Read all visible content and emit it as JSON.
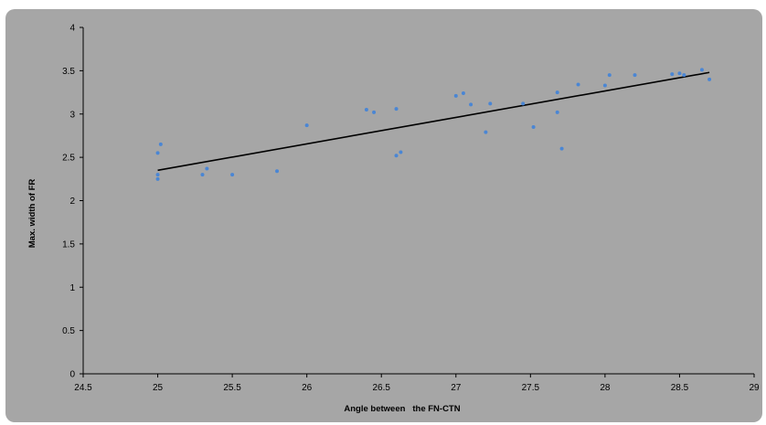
{
  "chart_data": {
    "type": "scatter",
    "title": "",
    "xlabel": "Angle between   the FN-CTN",
    "ylabel": "Max. width of FR",
    "xlim": [
      24.5,
      29
    ],
    "ylim": [
      0,
      4
    ],
    "x_ticks": [
      "24.5",
      "25",
      "25.5",
      "26",
      "26.5",
      "27",
      "27.5",
      "28",
      "28.5",
      "29"
    ],
    "y_ticks": [
      "0",
      "0.5",
      "1",
      "1.5",
      "2",
      "2.5",
      "3",
      "3.5",
      "4"
    ],
    "grid": false,
    "legend": "none",
    "point_color": "#4a86d4",
    "trendline": {
      "x": [
        25.0,
        28.7
      ],
      "y": [
        2.35,
        3.48
      ],
      "color": "#000000"
    },
    "points": [
      {
        "x": 25.0,
        "y": 2.55
      },
      {
        "x": 25.02,
        "y": 2.65
      },
      {
        "x": 25.0,
        "y": 2.3
      },
      {
        "x": 25.0,
        "y": 2.25
      },
      {
        "x": 25.3,
        "y": 2.3
      },
      {
        "x": 25.33,
        "y": 2.37
      },
      {
        "x": 25.5,
        "y": 2.3
      },
      {
        "x": 25.8,
        "y": 2.34
      },
      {
        "x": 26.0,
        "y": 2.87
      },
      {
        "x": 26.4,
        "y": 3.05
      },
      {
        "x": 26.45,
        "y": 3.02
      },
      {
        "x": 26.6,
        "y": 3.06
      },
      {
        "x": 26.6,
        "y": 2.52
      },
      {
        "x": 26.63,
        "y": 2.56
      },
      {
        "x": 27.0,
        "y": 3.21
      },
      {
        "x": 27.05,
        "y": 3.24
      },
      {
        "x": 27.1,
        "y": 3.11
      },
      {
        "x": 27.2,
        "y": 2.79
      },
      {
        "x": 27.23,
        "y": 3.12
      },
      {
        "x": 27.45,
        "y": 3.12
      },
      {
        "x": 27.52,
        "y": 2.85
      },
      {
        "x": 27.68,
        "y": 3.25
      },
      {
        "x": 27.68,
        "y": 3.02
      },
      {
        "x": 27.71,
        "y": 2.6
      },
      {
        "x": 27.82,
        "y": 3.34
      },
      {
        "x": 28.0,
        "y": 3.33
      },
      {
        "x": 28.03,
        "y": 3.45
      },
      {
        "x": 28.2,
        "y": 3.45
      },
      {
        "x": 28.45,
        "y": 3.46
      },
      {
        "x": 28.5,
        "y": 3.47
      },
      {
        "x": 28.53,
        "y": 3.45
      },
      {
        "x": 28.65,
        "y": 3.51
      },
      {
        "x": 28.7,
        "y": 3.4
      }
    ]
  }
}
